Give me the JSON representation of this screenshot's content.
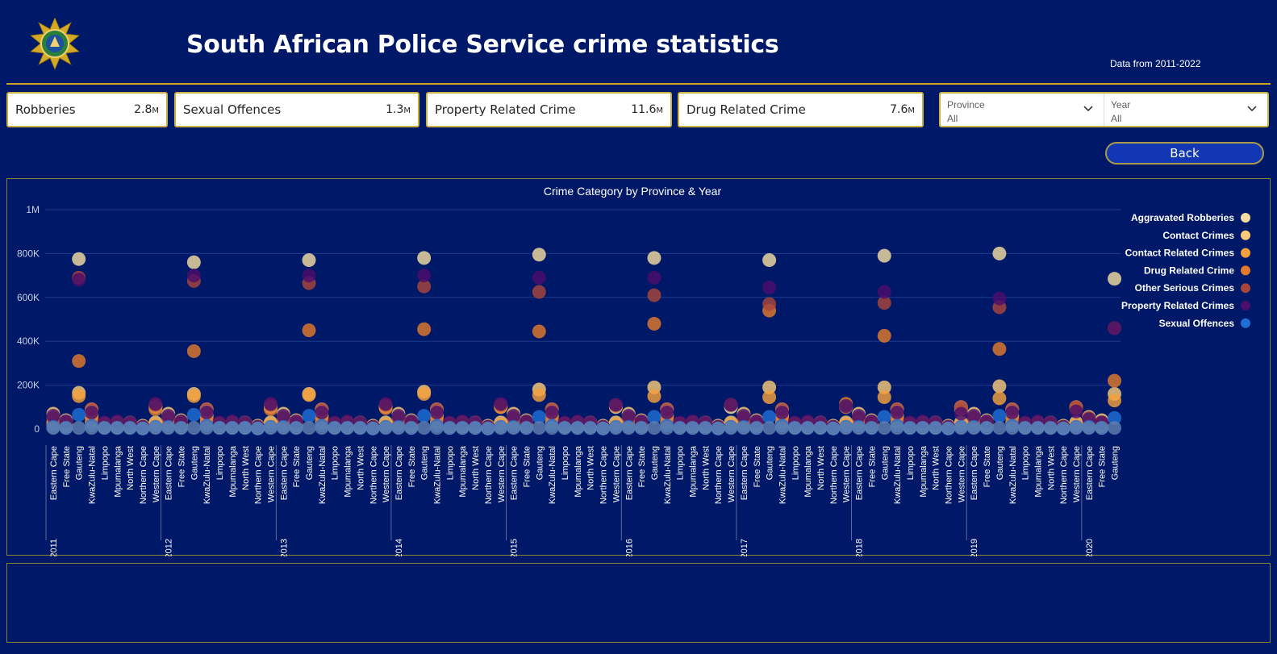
{
  "header": {
    "title": "South African Police Service crime statistics",
    "subtitle": "Data from 2011-2022"
  },
  "cards": [
    {
      "label": "Robberies",
      "value": "2.8",
      "unit": "M"
    },
    {
      "label": "Sexual Offences",
      "value": "1.3",
      "unit": "M"
    },
    {
      "label": "Property Related Crime",
      "value": "11.6",
      "unit": "M"
    },
    {
      "label": "Drug Related Crime",
      "value": "7.6",
      "unit": "M"
    }
  ],
  "slicers": {
    "province": {
      "label": "Province",
      "value": "All"
    },
    "year": {
      "label": "Year",
      "value": "All"
    }
  },
  "back_label": "Back",
  "colors": {
    "background": "#001868",
    "gold": "#c9a227",
    "button": "#1237b5"
  },
  "chart_data": {
    "type": "scatter",
    "title": "Crime Category by Province & Year",
    "ylim": [
      0,
      1000000
    ],
    "y_ticks": [
      {
        "v": 0,
        "label": "0"
      },
      {
        "v": 200000,
        "label": "200K"
      },
      {
        "v": 400000,
        "label": "400K"
      },
      {
        "v": 600000,
        "label": "600K"
      },
      {
        "v": 800000,
        "label": "800K"
      },
      {
        "v": 1000000,
        "label": "1M"
      }
    ],
    "grid": true,
    "legend_position": "right",
    "provinces": [
      "Eastern Cape",
      "Free State",
      "Gauteng",
      "KwaZulu-Natal",
      "Limpopo",
      "Mpumalanga",
      "North West",
      "Northern Cape",
      "Western Cape"
    ],
    "years": [
      "2011",
      "2012",
      "2013",
      "2014",
      "2015",
      "2016",
      "2017",
      "2018",
      "2019",
      "2020"
    ],
    "visible_last_year_provinces": 3,
    "series": [
      {
        "name": "Aggravated Robberies",
        "color": "#f3dca0",
        "values": {
          "2011": [
            30000,
            20000,
            775000,
            90000,
            15000,
            20000,
            15000,
            5000,
            100000
          ],
          "2012": [
            30000,
            20000,
            760000,
            90000,
            15000,
            20000,
            15000,
            5000,
            100000
          ],
          "2013": [
            30000,
            20000,
            770000,
            90000,
            15000,
            20000,
            15000,
            5000,
            100000
          ],
          "2014": [
            30000,
            20000,
            780000,
            90000,
            15000,
            20000,
            15000,
            5000,
            100000
          ],
          "2015": [
            30000,
            20000,
            795000,
            90000,
            15000,
            20000,
            15000,
            5000,
            100000
          ],
          "2016": [
            30000,
            20000,
            780000,
            90000,
            15000,
            20000,
            15000,
            5000,
            100000
          ],
          "2017": [
            30000,
            20000,
            770000,
            90000,
            15000,
            20000,
            15000,
            5000,
            100000
          ],
          "2018": [
            30000,
            20000,
            790000,
            90000,
            15000,
            20000,
            15000,
            5000,
            100000
          ],
          "2019": [
            30000,
            20000,
            800000,
            90000,
            15000,
            20000,
            15000,
            5000,
            100000
          ],
          "2020": [
            30000,
            20000,
            685000
          ]
        }
      },
      {
        "name": "Contact Crimes",
        "color": "#f7c978",
        "values": {
          "2011": [
            70000,
            40000,
            165000,
            60000,
            25000,
            30000,
            30000,
            15000,
            30000
          ],
          "2012": [
            70000,
            40000,
            160000,
            60000,
            25000,
            30000,
            30000,
            15000,
            30000
          ],
          "2013": [
            70000,
            40000,
            160000,
            60000,
            25000,
            30000,
            30000,
            15000,
            30000
          ],
          "2014": [
            70000,
            40000,
            170000,
            60000,
            25000,
            30000,
            30000,
            15000,
            30000
          ],
          "2015": [
            70000,
            40000,
            180000,
            60000,
            25000,
            30000,
            30000,
            15000,
            30000
          ],
          "2016": [
            70000,
            40000,
            190000,
            60000,
            25000,
            30000,
            30000,
            15000,
            30000
          ],
          "2017": [
            70000,
            40000,
            190000,
            60000,
            25000,
            30000,
            30000,
            15000,
            30000
          ],
          "2018": [
            70000,
            40000,
            190000,
            60000,
            25000,
            30000,
            30000,
            15000,
            30000
          ],
          "2019": [
            70000,
            40000,
            195000,
            60000,
            25000,
            30000,
            30000,
            15000,
            30000
          ],
          "2020": [
            55000,
            40000,
            160000
          ]
        }
      },
      {
        "name": "Contact Related Crimes",
        "color": "#f5a03c",
        "values": {
          "2011": [
            20000,
            15000,
            150000,
            30000,
            10000,
            10000,
            10000,
            5000,
            20000
          ],
          "2012": [
            20000,
            15000,
            150000,
            30000,
            10000,
            10000,
            10000,
            5000,
            20000
          ],
          "2013": [
            20000,
            15000,
            155000,
            30000,
            10000,
            10000,
            10000,
            5000,
            20000
          ],
          "2014": [
            20000,
            15000,
            160000,
            30000,
            10000,
            10000,
            10000,
            5000,
            20000
          ],
          "2015": [
            20000,
            15000,
            155000,
            30000,
            10000,
            10000,
            10000,
            5000,
            20000
          ],
          "2016": [
            20000,
            15000,
            150000,
            30000,
            10000,
            10000,
            10000,
            5000,
            20000
          ],
          "2017": [
            20000,
            15000,
            145000,
            30000,
            10000,
            10000,
            10000,
            5000,
            20000
          ],
          "2018": [
            20000,
            15000,
            145000,
            30000,
            10000,
            10000,
            10000,
            5000,
            20000
          ],
          "2019": [
            20000,
            15000,
            140000,
            30000,
            10000,
            10000,
            10000,
            5000,
            20000
          ],
          "2020": [
            20000,
            15000,
            130000
          ]
        }
      },
      {
        "name": "Drug Related Crime",
        "color": "#e07a2c",
        "values": {
          "2011": [
            20000,
            30000,
            310000,
            50000,
            20000,
            20000,
            25000,
            10000,
            90000
          ],
          "2012": [
            20000,
            30000,
            355000,
            50000,
            20000,
            20000,
            25000,
            10000,
            90000
          ],
          "2013": [
            20000,
            30000,
            450000,
            50000,
            20000,
            20000,
            25000,
            10000,
            95000
          ],
          "2014": [
            20000,
            30000,
            455000,
            50000,
            20000,
            20000,
            25000,
            10000,
            100000
          ],
          "2015": [
            20000,
            30000,
            445000,
            50000,
            20000,
            20000,
            25000,
            10000,
            105000
          ],
          "2016": [
            20000,
            30000,
            480000,
            50000,
            20000,
            20000,
            25000,
            10000,
            110000
          ],
          "2017": [
            20000,
            30000,
            540000,
            50000,
            20000,
            20000,
            25000,
            10000,
            115000
          ],
          "2018": [
            20000,
            30000,
            425000,
            50000,
            20000,
            20000,
            25000,
            10000,
            90000
          ],
          "2019": [
            20000,
            30000,
            365000,
            50000,
            20000,
            20000,
            25000,
            10000,
            95000
          ],
          "2020": [
            20000,
            30000,
            220000
          ]
        }
      },
      {
        "name": "Other Serious Crimes",
        "color": "#a8453a",
        "values": {
          "2011": [
            50000,
            30000,
            690000,
            90000,
            25000,
            30000,
            25000,
            10000,
            110000
          ],
          "2012": [
            50000,
            30000,
            675000,
            90000,
            25000,
            30000,
            25000,
            10000,
            110000
          ],
          "2013": [
            50000,
            30000,
            665000,
            90000,
            25000,
            30000,
            25000,
            10000,
            110000
          ],
          "2014": [
            50000,
            30000,
            650000,
            90000,
            25000,
            30000,
            25000,
            10000,
            110000
          ],
          "2015": [
            50000,
            30000,
            625000,
            90000,
            25000,
            30000,
            25000,
            10000,
            110000
          ],
          "2016": [
            50000,
            30000,
            610000,
            90000,
            25000,
            30000,
            25000,
            10000,
            110000
          ],
          "2017": [
            50000,
            30000,
            570000,
            90000,
            25000,
            30000,
            25000,
            10000,
            100000
          ],
          "2018": [
            50000,
            30000,
            575000,
            90000,
            25000,
            30000,
            25000,
            10000,
            100000
          ],
          "2019": [
            50000,
            30000,
            555000,
            90000,
            25000,
            30000,
            25000,
            10000,
            100000
          ],
          "2020": [
            50000,
            30000,
            460000
          ]
        }
      },
      {
        "name": "Property Related Crimes",
        "color": "#4b0e6b",
        "values": {
          "2011": [
            60000,
            35000,
            680000,
            75000,
            30000,
            35000,
            30000,
            10000,
            115000
          ],
          "2012": [
            60000,
            35000,
            700000,
            75000,
            30000,
            35000,
            30000,
            10000,
            115000
          ],
          "2013": [
            60000,
            35000,
            700000,
            75000,
            30000,
            35000,
            30000,
            10000,
            115000
          ],
          "2014": [
            60000,
            35000,
            700000,
            75000,
            30000,
            35000,
            30000,
            10000,
            115000
          ],
          "2015": [
            60000,
            35000,
            690000,
            75000,
            30000,
            35000,
            30000,
            10000,
            110000
          ],
          "2016": [
            60000,
            35000,
            690000,
            75000,
            30000,
            35000,
            30000,
            10000,
            110000
          ],
          "2017": [
            60000,
            35000,
            645000,
            75000,
            30000,
            35000,
            30000,
            10000,
            105000
          ],
          "2018": [
            60000,
            35000,
            625000,
            75000,
            30000,
            35000,
            30000,
            10000,
            70000
          ],
          "2019": [
            60000,
            35000,
            595000,
            75000,
            30000,
            35000,
            30000,
            10000,
            80000
          ],
          "2020": [
            45000,
            30000,
            460000
          ]
        }
      },
      {
        "name": "Sexual Offences",
        "color": "#1e6fd6",
        "values": {
          "2011": [
            10000,
            5000,
            65000,
            15000,
            5000,
            5000,
            5000,
            2000,
            10000
          ],
          "2012": [
            10000,
            5000,
            65000,
            15000,
            5000,
            5000,
            5000,
            2000,
            10000
          ],
          "2013": [
            10000,
            5000,
            60000,
            15000,
            5000,
            5000,
            5000,
            2000,
            10000
          ],
          "2014": [
            10000,
            5000,
            60000,
            15000,
            5000,
            5000,
            5000,
            2000,
            10000
          ],
          "2015": [
            10000,
            5000,
            55000,
            15000,
            5000,
            5000,
            5000,
            2000,
            10000
          ],
          "2016": [
            10000,
            5000,
            55000,
            15000,
            5000,
            5000,
            5000,
            2000,
            10000
          ],
          "2017": [
            10000,
            5000,
            55000,
            15000,
            5000,
            5000,
            5000,
            2000,
            10000
          ],
          "2018": [
            10000,
            5000,
            55000,
            15000,
            5000,
            5000,
            5000,
            2000,
            10000
          ],
          "2019": [
            10000,
            5000,
            60000,
            15000,
            5000,
            5000,
            5000,
            2000,
            10000
          ],
          "2020": [
            10000,
            5000,
            50000
          ]
        }
      },
      {
        "name": "",
        "color": "#5f7fae",
        "values": {
          "2011": [
            5000,
            5000,
            5000,
            5000,
            5000,
            5000,
            5000,
            3000,
            5000
          ],
          "2012": [
            5000,
            5000,
            5000,
            5000,
            5000,
            5000,
            5000,
            3000,
            5000
          ],
          "2013": [
            5000,
            5000,
            5000,
            5000,
            5000,
            5000,
            5000,
            3000,
            5000
          ],
          "2014": [
            5000,
            5000,
            5000,
            5000,
            5000,
            5000,
            5000,
            3000,
            5000
          ],
          "2015": [
            5000,
            5000,
            5000,
            5000,
            5000,
            5000,
            5000,
            3000,
            5000
          ],
          "2016": [
            5000,
            5000,
            5000,
            5000,
            5000,
            5000,
            5000,
            3000,
            5000
          ],
          "2017": [
            5000,
            5000,
            5000,
            5000,
            5000,
            5000,
            5000,
            3000,
            5000
          ],
          "2018": [
            5000,
            5000,
            5000,
            5000,
            5000,
            5000,
            5000,
            3000,
            5000
          ],
          "2019": [
            5000,
            5000,
            5000,
            5000,
            5000,
            5000,
            5000,
            3000,
            5000
          ],
          "2020": [
            5000,
            5000,
            5000
          ]
        }
      }
    ]
  }
}
